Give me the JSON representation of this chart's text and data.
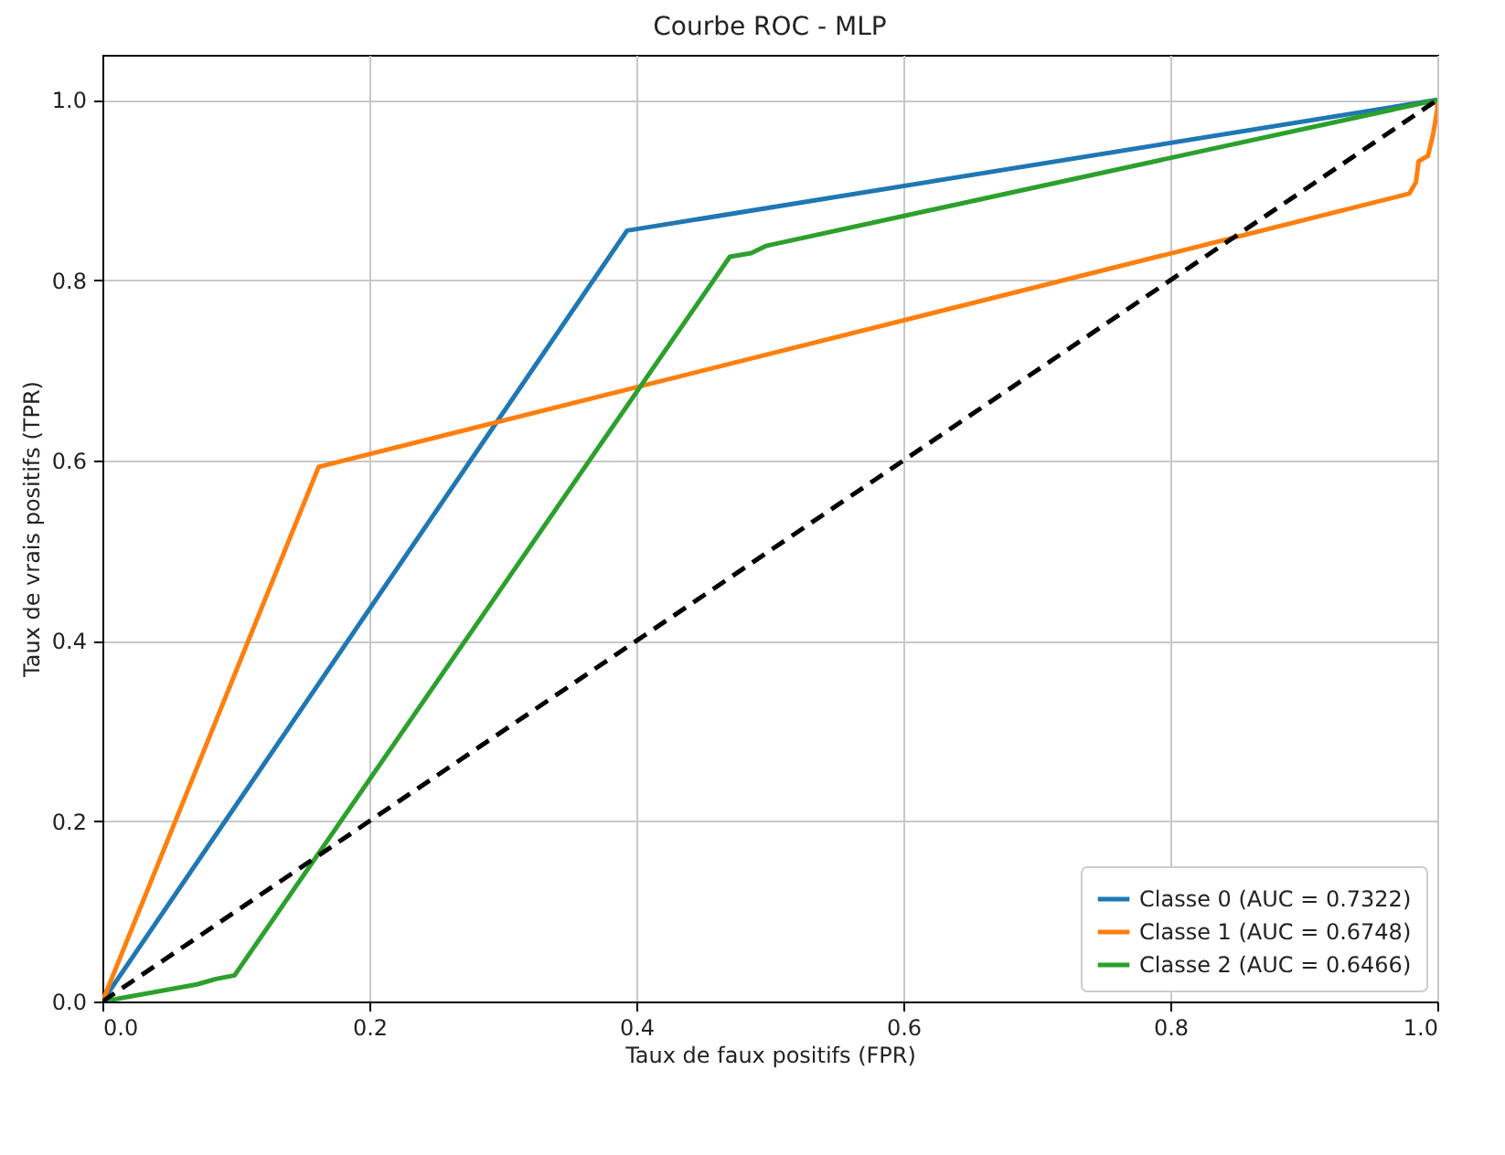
{
  "chart_data": {
    "type": "line",
    "title": "Courbe ROC - MLP",
    "xlabel": "Taux de faux positifs (FPR)",
    "ylabel": "Taux de vrais positifs (TPR)",
    "xlim": [
      0,
      1
    ],
    "ylim": [
      0,
      1.05
    ],
    "xticks": [
      {
        "value": 0,
        "label": "0.0"
      },
      {
        "value": 0.2,
        "label": "0.2"
      },
      {
        "value": 0.4,
        "label": "0.4"
      },
      {
        "value": 0.6,
        "label": "0.6"
      },
      {
        "value": 0.8,
        "label": "0.8"
      },
      {
        "value": 1,
        "label": "1.0"
      }
    ],
    "yticks": [
      {
        "value": 0,
        "label": "0.0"
      },
      {
        "value": 0.2,
        "label": "0.2"
      },
      {
        "value": 0.4,
        "label": "0.4"
      },
      {
        "value": 0.6,
        "label": "0.6"
      },
      {
        "value": 0.8,
        "label": "0.8"
      },
      {
        "value": 1,
        "label": "1.0"
      }
    ],
    "grid": true,
    "legend": "bottom right",
    "marker": "none",
    "line_style": "solid",
    "series": [
      {
        "name": "Classe 0 (AUC = 0.7322)",
        "color": "#1f77b4",
        "x": [
          0,
          0.393,
          1
        ],
        "values": [
          0,
          0.855,
          1
        ]
      },
      {
        "name": "Classe 1 (AUC = 0.6748)",
        "color": "#ff7f0e",
        "x": [
          0,
          0.162,
          0.979,
          0.984,
          0.986,
          0.993,
          0.997,
          1,
          1
        ],
        "values": [
          0,
          0.593,
          0.896,
          0.909,
          0.932,
          0.938,
          0.963,
          0.99,
          1
        ]
      },
      {
        "name": "Classe 2 (AUC = 0.6466)",
        "color": "#2ca02c",
        "x": [
          0,
          0.071,
          0.085,
          0.099,
          0.47,
          0.486,
          0.497,
          1
        ],
        "values": [
          0,
          0.019,
          0.025,
          0.029,
          0.826,
          0.83,
          0.838,
          1
        ]
      },
      {
        "color": "#000000",
        "line_style": "dashed",
        "x": [
          0,
          1
        ],
        "values": [
          0,
          1
        ]
      }
    ]
  }
}
